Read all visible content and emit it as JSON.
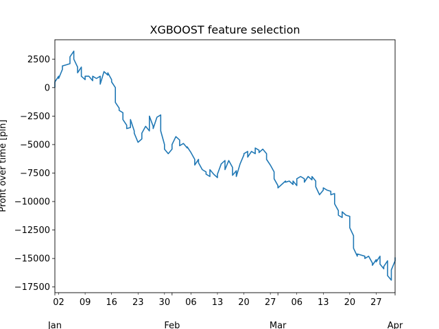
{
  "chart_data": {
    "type": "line",
    "title": "XGBOOST feature selection",
    "xlabel": "",
    "ylabel": "Profit over time [pln]",
    "ylim": [
      -18000,
      4200
    ],
    "xlim": [
      "2019-01-01",
      "2019-04-01"
    ],
    "grid": false,
    "line_color": "#1f77b4",
    "y_ticks": [
      2500,
      0,
      -2500,
      -5000,
      -7500,
      -10000,
      -12500,
      -15000,
      -17500
    ],
    "y_tick_labels": [
      "2500",
      "0",
      "−2500",
      "−5000",
      "−7500",
      "−10000",
      "−12500",
      "−15000",
      "−17500"
    ],
    "x_minor_ticks": [
      {
        "date": "2019-01-02",
        "label": "02"
      },
      {
        "date": "2019-01-09",
        "label": "09"
      },
      {
        "date": "2019-01-16",
        "label": "16"
      },
      {
        "date": "2019-01-23",
        "label": "23"
      },
      {
        "date": "2019-01-30",
        "label": "30"
      },
      {
        "date": "2019-02-06",
        "label": "06"
      },
      {
        "date": "2019-02-13",
        "label": "13"
      },
      {
        "date": "2019-02-20",
        "label": "20"
      },
      {
        "date": "2019-02-27",
        "label": "27"
      },
      {
        "date": "2019-03-06",
        "label": "06"
      },
      {
        "date": "2019-03-13",
        "label": "13"
      },
      {
        "date": "2019-03-20",
        "label": "20"
      },
      {
        "date": "2019-03-27",
        "label": "27"
      }
    ],
    "x_major_ticks": [
      {
        "date": "2019-01-01",
        "label": "Jan"
      },
      {
        "date": "2019-02-01",
        "label": "Feb"
      },
      {
        "date": "2019-03-01",
        "label": "Mar"
      },
      {
        "date": "2019-04-01",
        "label": "Apr"
      }
    ],
    "series": [
      {
        "points": [
          [
            "2019-01-01",
            0
          ],
          [
            "2019-01-01",
            500
          ],
          [
            "2019-01-02",
            1000
          ],
          [
            "2019-01-02",
            800
          ],
          [
            "2019-01-03",
            1600
          ],
          [
            "2019-01-03",
            1900
          ],
          [
            "2019-01-04",
            2000
          ],
          [
            "2019-01-05",
            2100
          ],
          [
            "2019-01-05",
            2700
          ],
          [
            "2019-01-06",
            3200
          ],
          [
            "2019-01-06",
            2500
          ],
          [
            "2019-01-07",
            1800
          ],
          [
            "2019-01-07",
            1300
          ],
          [
            "2019-01-08",
            1800
          ],
          [
            "2019-01-08",
            1000
          ],
          [
            "2019-01-09",
            700
          ],
          [
            "2019-01-09",
            1000
          ],
          [
            "2019-01-10",
            1000
          ],
          [
            "2019-01-11",
            600
          ],
          [
            "2019-01-11",
            1000
          ],
          [
            "2019-01-12",
            800
          ],
          [
            "2019-01-13",
            1000
          ],
          [
            "2019-01-13",
            300
          ],
          [
            "2019-01-14",
            1400
          ],
          [
            "2019-01-15",
            1100
          ],
          [
            "2019-01-15",
            1300
          ],
          [
            "2019-01-16",
            700
          ],
          [
            "2019-01-16",
            500
          ],
          [
            "2019-01-17",
            0
          ],
          [
            "2019-01-17",
            -1300
          ],
          [
            "2019-01-18",
            -1800
          ],
          [
            "2019-01-18",
            -2000
          ],
          [
            "2019-01-19",
            -2200
          ],
          [
            "2019-01-19",
            -2800
          ],
          [
            "2019-01-20",
            -3300
          ],
          [
            "2019-01-20",
            -3600
          ],
          [
            "2019-01-21",
            -3500
          ],
          [
            "2019-01-21",
            -2800
          ],
          [
            "2019-01-22",
            -3800
          ],
          [
            "2019-01-22",
            -4000
          ],
          [
            "2019-01-23",
            -4800
          ],
          [
            "2019-01-24",
            -4500
          ],
          [
            "2019-01-24",
            -4000
          ],
          [
            "2019-01-25",
            -3400
          ],
          [
            "2019-01-26",
            -3800
          ],
          [
            "2019-01-26",
            -2500
          ],
          [
            "2019-01-27",
            -3400
          ],
          [
            "2019-01-27",
            -3600
          ],
          [
            "2019-01-28",
            -2600
          ],
          [
            "2019-01-29",
            -2400
          ],
          [
            "2019-01-29",
            -3800
          ],
          [
            "2019-01-30",
            -5000
          ],
          [
            "2019-01-30",
            -5400
          ],
          [
            "2019-01-31",
            -5800
          ],
          [
            "2019-02-01",
            -5400
          ],
          [
            "2019-02-01",
            -5000
          ],
          [
            "2019-02-02",
            -4300
          ],
          [
            "2019-02-03",
            -4600
          ],
          [
            "2019-02-03",
            -5100
          ],
          [
            "2019-02-04",
            -4900
          ],
          [
            "2019-02-05",
            -5300
          ],
          [
            "2019-02-05",
            -5200
          ],
          [
            "2019-02-06",
            -5700
          ],
          [
            "2019-02-07",
            -6300
          ],
          [
            "2019-02-07",
            -6800
          ],
          [
            "2019-02-08",
            -6300
          ],
          [
            "2019-02-08",
            -6600
          ],
          [
            "2019-02-09",
            -7200
          ],
          [
            "2019-02-10",
            -7400
          ],
          [
            "2019-02-10",
            -7600
          ],
          [
            "2019-02-11",
            -7800
          ],
          [
            "2019-02-11",
            -7200
          ],
          [
            "2019-02-12",
            -7600
          ],
          [
            "2019-02-13",
            -7900
          ],
          [
            "2019-02-13",
            -7600
          ],
          [
            "2019-02-14",
            -6700
          ],
          [
            "2019-02-15",
            -6400
          ],
          [
            "2019-02-15",
            -7200
          ],
          [
            "2019-02-16",
            -6400
          ],
          [
            "2019-02-17",
            -7000
          ],
          [
            "2019-02-17",
            -7700
          ],
          [
            "2019-02-18",
            -7300
          ],
          [
            "2019-02-18",
            -7800
          ],
          [
            "2019-02-19",
            -6700
          ],
          [
            "2019-02-20",
            -5900
          ],
          [
            "2019-02-20",
            -5800
          ],
          [
            "2019-02-21",
            -5600
          ],
          [
            "2019-02-21",
            -6100
          ],
          [
            "2019-02-22",
            -5600
          ],
          [
            "2019-02-23",
            -5800
          ],
          [
            "2019-02-23",
            -5300
          ],
          [
            "2019-02-24",
            -5500
          ],
          [
            "2019-02-24",
            -5700
          ],
          [
            "2019-02-25",
            -5400
          ],
          [
            "2019-02-26",
            -5800
          ],
          [
            "2019-02-26",
            -6300
          ],
          [
            "2019-02-27",
            -6800
          ],
          [
            "2019-02-28",
            -7400
          ],
          [
            "2019-02-28",
            -8000
          ],
          [
            "2019-03-01",
            -8600
          ],
          [
            "2019-03-01",
            -8800
          ],
          [
            "2019-03-02",
            -8500
          ],
          [
            "2019-03-03",
            -8200
          ],
          [
            "2019-03-03",
            -8300
          ],
          [
            "2019-03-04",
            -8200
          ],
          [
            "2019-03-05",
            -8500
          ],
          [
            "2019-03-05",
            -8200
          ],
          [
            "2019-03-06",
            -8600
          ],
          [
            "2019-03-06",
            -8000
          ],
          [
            "2019-03-07",
            -7800
          ],
          [
            "2019-03-08",
            -8000
          ],
          [
            "2019-03-08",
            -8300
          ],
          [
            "2019-03-09",
            -7800
          ],
          [
            "2019-03-10",
            -8100
          ],
          [
            "2019-03-10",
            -7800
          ],
          [
            "2019-03-11",
            -8200
          ],
          [
            "2019-03-11",
            -8700
          ],
          [
            "2019-03-12",
            -9400
          ],
          [
            "2019-03-13",
            -9000
          ],
          [
            "2019-03-13",
            -8800
          ],
          [
            "2019-03-14",
            -9000
          ],
          [
            "2019-03-15",
            -9100
          ],
          [
            "2019-03-15",
            -9400
          ],
          [
            "2019-03-16",
            -9300
          ],
          [
            "2019-03-16",
            -10200
          ],
          [
            "2019-03-17",
            -10800
          ],
          [
            "2019-03-17",
            -11200
          ],
          [
            "2019-03-18",
            -11400
          ],
          [
            "2019-03-18",
            -10900
          ],
          [
            "2019-03-19",
            -11200
          ],
          [
            "2019-03-20",
            -11300
          ],
          [
            "2019-03-20",
            -12300
          ],
          [
            "2019-03-21",
            -13000
          ],
          [
            "2019-03-21",
            -14100
          ],
          [
            "2019-03-22",
            -14800
          ],
          [
            "2019-03-22",
            -14600
          ],
          [
            "2019-03-23",
            -14700
          ],
          [
            "2019-03-24",
            -14800
          ],
          [
            "2019-03-24",
            -15000
          ],
          [
            "2019-03-25",
            -14800
          ],
          [
            "2019-03-26",
            -15400
          ],
          [
            "2019-03-26",
            -15600
          ],
          [
            "2019-03-27",
            -15100
          ],
          [
            "2019-03-27",
            -15300
          ],
          [
            "2019-03-28",
            -14800
          ],
          [
            "2019-03-28",
            -15500
          ],
          [
            "2019-03-29",
            -15900
          ],
          [
            "2019-03-29",
            -15700
          ],
          [
            "2019-03-30",
            -15200
          ],
          [
            "2019-03-30",
            -16500
          ],
          [
            "2019-03-31",
            -16900
          ],
          [
            "2019-03-31",
            -16000
          ],
          [
            "2019-04-01",
            -15200
          ],
          [
            "2019-04-01",
            -14900
          ]
        ]
      }
    ]
  }
}
